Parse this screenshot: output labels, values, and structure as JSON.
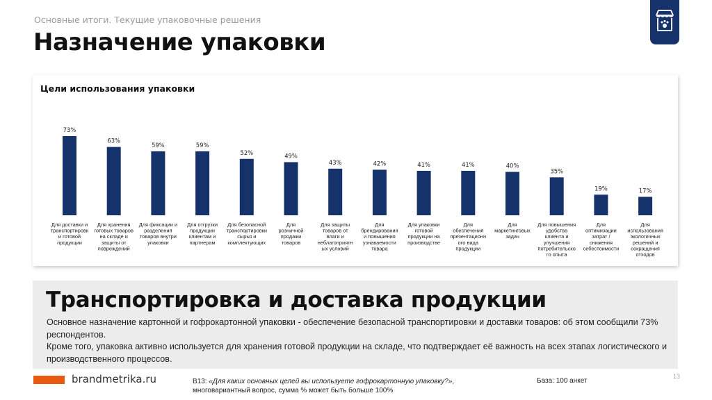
{
  "header": {
    "breadcrumb": "Основные итоги. Текущие упаковочные решения",
    "title": "Назначение упаковки"
  },
  "logo": {
    "icon": "store-icon",
    "color": "#16326b"
  },
  "chart_data": {
    "type": "bar",
    "title": "Цели использования упаковки",
    "color": "#16326b",
    "value_suffix": "%",
    "ylim": [
      0,
      100
    ],
    "grid": false,
    "categories": [
      [
        "Для доставки и",
        "транспортировк",
        "и готовой",
        "продукции"
      ],
      [
        "Для хранения",
        "готовых товаров",
        "на складе и",
        "защиты от",
        "повреждений"
      ],
      [
        "Для фиксации и",
        "разделения",
        "товаров внутри",
        "упаковки"
      ],
      [
        "Для отгрузки",
        "продукции",
        "клиентам и",
        "партнерам"
      ],
      [
        "Для безопасной",
        "транспортировки",
        "сырья и",
        "комплектующих"
      ],
      [
        "Для",
        "розничной",
        "продажи",
        "товаров"
      ],
      [
        "Для защиты",
        "товаров от",
        "влаги и",
        "неблагоприятн",
        "ых условий"
      ],
      [
        "Для",
        "брендирования",
        "и повышения",
        "узнаваемости",
        "товара"
      ],
      [
        "Для упаковки",
        "готовой",
        "продукции на",
        "производстве"
      ],
      [
        "Для",
        "обеспечения",
        "презентационн",
        "ого вида",
        "продукции"
      ],
      [
        "Для",
        "маркетинговых",
        "задач"
      ],
      [
        "Для повышения",
        "удобства",
        "клиента и",
        "улучшения",
        "потребительско",
        "го опыта"
      ],
      [
        "Для",
        "оптимизации",
        "затрат /",
        "снижения",
        "себестоимости"
      ],
      [
        "Для",
        "использования",
        "экологичных",
        "решений и",
        "сокращения",
        "отходов"
      ]
    ],
    "values": [
      73,
      63,
      59,
      59,
      52,
      49,
      43,
      42,
      41,
      41,
      40,
      35,
      19,
      17
    ]
  },
  "summary": {
    "title": "Транспортировка и доставка продукции",
    "paragraph1": "Основное назначение картонной и гофрокартонной упаковки - обеспечение безопасной транспортировки и доставки товаров: об этом сообщили 73% респондентов.",
    "paragraph2": "Кроме того, упаковка активно используется для хранения готовой продукции на складе, что подтверждает её важность на всех этапах логистического и производственного процессов."
  },
  "footer": {
    "accent_color": "#e85a12",
    "site": "brandmetrika.ru",
    "question_prefix": "B13: ",
    "question_text": "«Для каких основных целей вы используете гофрокартонную упаковку?»",
    "question_note": ", многовариантный вопрос, сумма % может быть больше 100%",
    "base": "База: 100 анкет",
    "page_number": "13"
  }
}
